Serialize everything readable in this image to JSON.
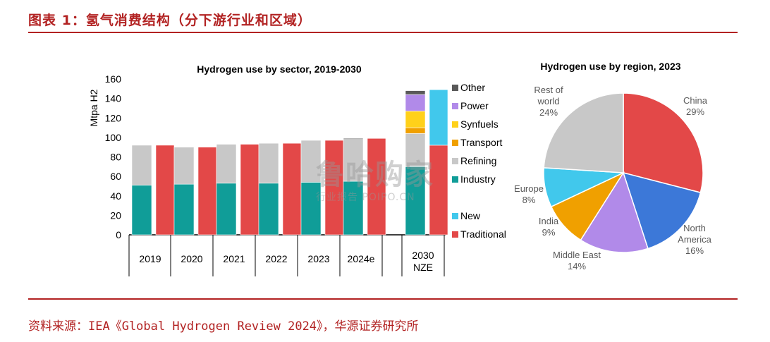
{
  "figure": {
    "title": "图表 1：氢气消费结构（分下游行业和区域）",
    "source": "资料来源：IEA《Global Hydrogen Review 2024》，华源证券研究所",
    "watermark_main": "鲁哈购家",
    "watermark_sub": "行业报告 POIPO.CN"
  },
  "chart_data": [
    {
      "type": "bar",
      "stacked": true,
      "title": "Hydrogen use by sector, 2019-2030",
      "ylabel": "Mtpa H2",
      "ylim": [
        0,
        160
      ],
      "yticks": [
        0,
        20,
        40,
        60,
        80,
        100,
        120,
        140,
        160
      ],
      "groups": [
        {
          "label": "2019",
          "sector_bar": {
            "Industry": 51,
            "Refining": 41
          },
          "origin_bar": {
            "Traditional": 92
          }
        },
        {
          "label": "2020",
          "sector_bar": {
            "Industry": 52,
            "Refining": 38
          },
          "origin_bar": {
            "Traditional": 90
          }
        },
        {
          "label": "2021",
          "sector_bar": {
            "Industry": 53,
            "Refining": 40
          },
          "origin_bar": {
            "Traditional": 93
          }
        },
        {
          "label": "2022",
          "sector_bar": {
            "Industry": 53,
            "Refining": 41
          },
          "origin_bar": {
            "Traditional": 94
          }
        },
        {
          "label": "2023",
          "sector_bar": {
            "Industry": 54,
            "Refining": 43
          },
          "origin_bar": {
            "Traditional": 97
          }
        },
        {
          "label": "2024e",
          "sector_bar": {
            "Industry": 55,
            "Refining": 43,
            "Other": 1
          },
          "origin_bar": {
            "Traditional": 99
          }
        },
        {
          "label": "2030\nNZE",
          "sector_bar": {
            "Industry": 70,
            "Refining": 34,
            "Transport": 6,
            "Synfuels": 17,
            "Power": 17,
            "Other": 4
          },
          "origin_bar": {
            "Traditional": 92,
            "New": 57
          }
        }
      ],
      "series": [
        {
          "name": "Other",
          "color": "#595959"
        },
        {
          "name": "Power",
          "color": "#b18ae9"
        },
        {
          "name": "Synfuels",
          "color": "#ffd11a"
        },
        {
          "name": "Transport",
          "color": "#f0a000"
        },
        {
          "name": "Refining",
          "color": "#c8c8c8"
        },
        {
          "name": "Industry",
          "color": "#109d98"
        },
        {
          "name": "New",
          "color": "#41c8ec"
        },
        {
          "name": "Traditional",
          "color": "#e34848"
        }
      ]
    },
    {
      "type": "pie",
      "title": "Hydrogen use by region, 2023",
      "slices": [
        {
          "label": "China",
          "value": 29,
          "pct": "29%",
          "color": "#e34848"
        },
        {
          "label": "North America",
          "value": 16,
          "pct": "16%",
          "color": "#3c78d8"
        },
        {
          "label": "Middle East",
          "value": 14,
          "pct": "14%",
          "color": "#b18ae9"
        },
        {
          "label": "India",
          "value": 9,
          "pct": "9%",
          "color": "#f0a000"
        },
        {
          "label": "Europe",
          "value": 8,
          "pct": "8%",
          "color": "#41c8ec"
        },
        {
          "label": "Rest of world",
          "value": 24,
          "pct": "24%",
          "color": "#c8c8c8"
        }
      ]
    }
  ]
}
